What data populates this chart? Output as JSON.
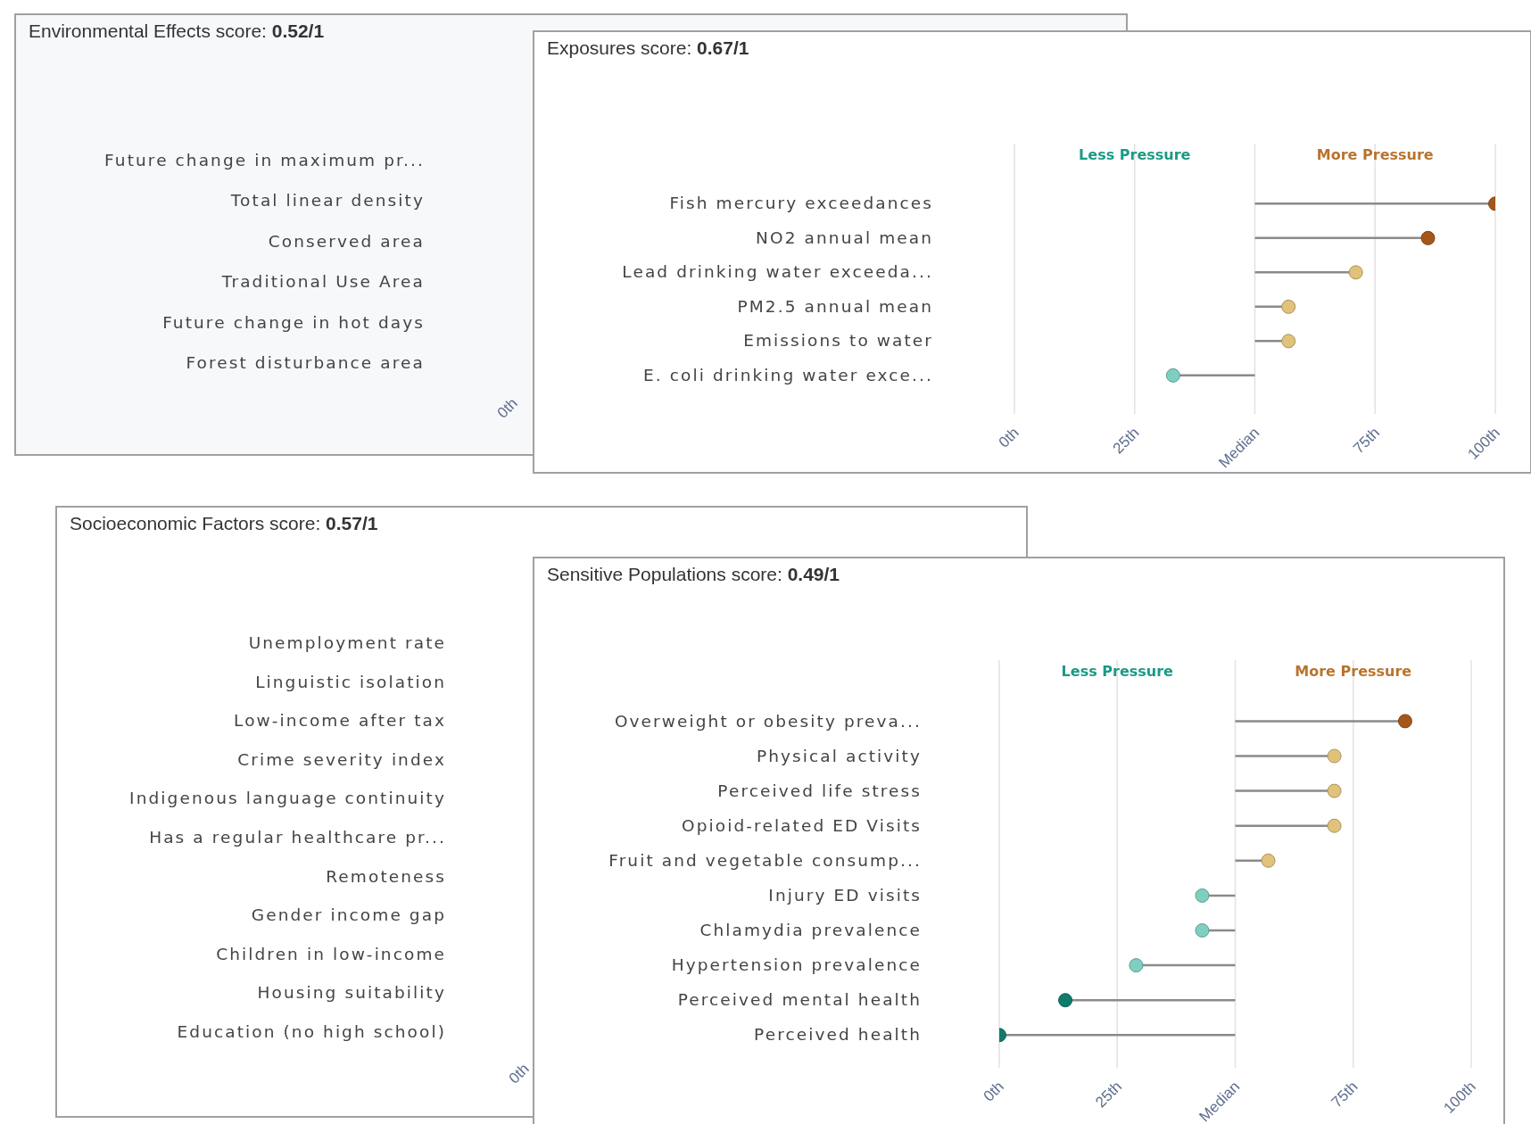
{
  "chart_data": [
    {
      "type": "other",
      "title": "Environmental Effects score: 0.52/1",
      "categories": [
        "Future change in maximum pr...",
        "Total linear density",
        "Conserved area",
        "Traditional Use Area",
        "Future change in hot days",
        "Forest disturbance area"
      ],
      "annotations": [
        "0th"
      ]
    },
    {
      "type": "lollipop",
      "orientation": "horizontal",
      "title": "Exposures score: 0.67/1",
      "categories": [
        "Fish mercury exceedances",
        "NO2 annual mean",
        "Lead drinking water exceeda...",
        "PM2.5 annual mean",
        "Emissions to water",
        "E. coli drinking water exce..."
      ],
      "values": [
        100,
        86,
        71,
        57,
        57,
        33
      ],
      "errors": [
        [
          50,
          100
        ],
        [
          50,
          86
        ],
        [
          50,
          71
        ],
        [
          50,
          57
        ],
        [
          50,
          57
        ],
        [
          33,
          50
        ]
      ],
      "colors": [
        "#a5571a",
        "#a5571a",
        "#e0c27a",
        "#e0c27a",
        "#e0c27a",
        "#7fcfc0"
      ],
      "xlim": [
        0,
        100
      ],
      "xticks": [
        {
          "value": 0,
          "label": "0th"
        },
        {
          "value": 25,
          "label": "25th"
        },
        {
          "value": 50,
          "label": "Median"
        },
        {
          "value": 75,
          "label": "75th"
        },
        {
          "value": 100,
          "label": "100th"
        }
      ],
      "grid": "x",
      "annotations": [
        "Less Pressure",
        "More Pressure"
      ]
    },
    {
      "type": "other",
      "title": "Socioeconomic Factors score: 0.57/1",
      "categories": [
        "Unemployment rate",
        "Linguistic isolation",
        "Low-income after tax",
        "Crime severity index",
        "Indigenous language continuity",
        "Has a regular healthcare pr...",
        "Remoteness",
        "Gender income gap",
        "Children in low-income",
        "Housing suitability",
        "Education (no high school)"
      ],
      "annotations": [
        "0th"
      ]
    },
    {
      "type": "lollipop",
      "orientation": "horizontal",
      "title": "Sensitive Populations score: 0.49/1",
      "categories": [
        "Overweight or obesity preva...",
        "Physical activity",
        "Perceived life stress",
        "Opioid-related ED Visits",
        "Fruit and vegetable consump...",
        "Injury ED visits",
        "Chlamydia prevalence",
        "Hypertension prevalence",
        "Perceived mental health",
        "Perceived health"
      ],
      "values": [
        86,
        71,
        71,
        71,
        57,
        43,
        43,
        29,
        14,
        0
      ],
      "errors": [
        [
          50,
          86
        ],
        [
          50,
          71
        ],
        [
          50,
          71
        ],
        [
          50,
          71
        ],
        [
          50,
          57
        ],
        [
          43,
          50
        ],
        [
          43,
          50
        ],
        [
          29,
          50
        ],
        [
          14,
          50
        ],
        [
          0,
          50
        ]
      ],
      "colors": [
        "#a5571a",
        "#e0c27a",
        "#e0c27a",
        "#e0c27a",
        "#e0c27a",
        "#7fcfc0",
        "#7fcfc0",
        "#7fcfc0",
        "#0e7c6b",
        "#0e7c6b"
      ],
      "xlim": [
        0,
        100
      ],
      "xticks": [
        {
          "value": 0,
          "label": "0th"
        },
        {
          "value": 25,
          "label": "25th"
        },
        {
          "value": 50,
          "label": "Median"
        },
        {
          "value": 75,
          "label": "75th"
        },
        {
          "value": 100,
          "label": "100th"
        }
      ],
      "grid": "x",
      "annotations": [
        "Less Pressure",
        "More Pressure"
      ]
    }
  ]
}
